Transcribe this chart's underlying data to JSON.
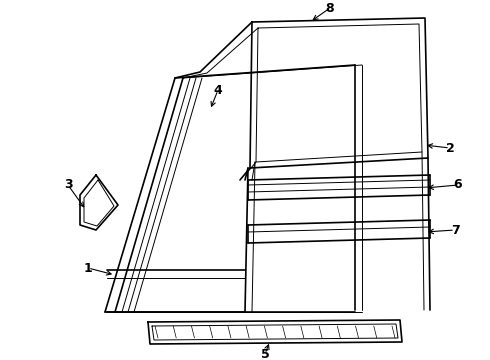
{
  "background_color": "#ffffff",
  "line_color": "#000000",
  "figsize": [
    4.9,
    3.6
  ],
  "dpi": 100,
  "label_fontsize": 9
}
